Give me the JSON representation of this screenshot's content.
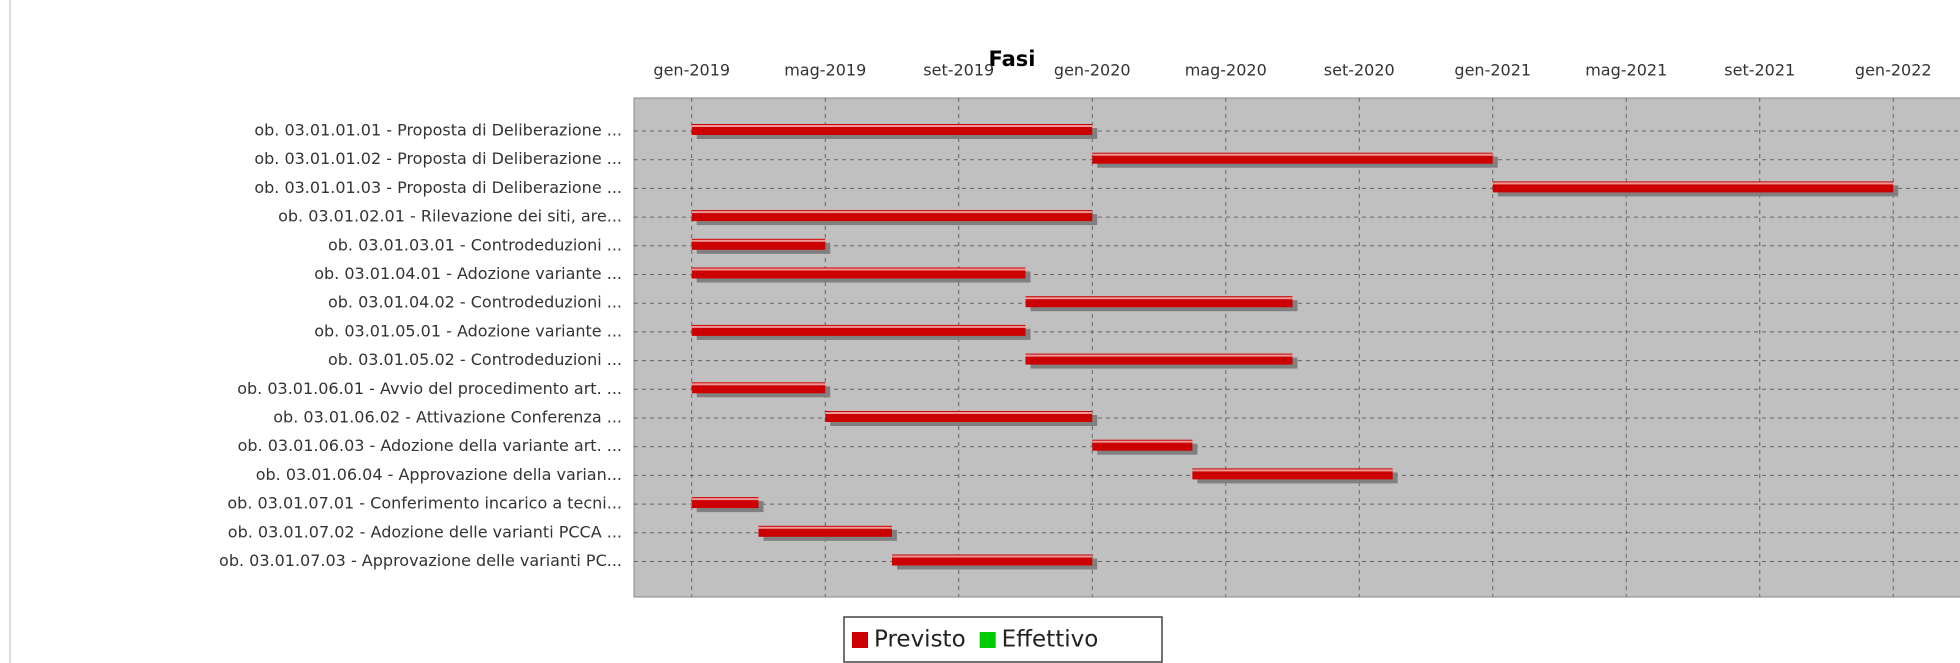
{
  "chart_data": {
    "type": "gantt",
    "title": "Fasi",
    "categories": [
      "ob. 03.01.01.01 - Proposta di Deliberazione ...",
      "ob. 03.01.01.02 - Proposta di Deliberazione ...",
      "ob. 03.01.01.03 - Proposta di Deliberazione ...",
      "ob. 03.01.02.01 - Rilevazione dei siti, are...",
      "ob. 03.01.03.01 - Controdeduzioni ...",
      "ob. 03.01.04.01 - Adozione variante ...",
      "ob. 03.01.04.02 - Controdeduzioni ...",
      "ob. 03.01.05.01 - Adozione variante ...",
      "ob. 03.01.05.02 - Controdeduzioni ...",
      "ob. 03.01.06.01 - Avvio del procedimento art. ...",
      "ob. 03.01.06.02 - Attivazione  Conferenza  ...",
      "ob. 03.01.06.03 - Adozione della variante art. ...",
      "ob. 03.01.06.04 - Approvazione della varian...",
      "ob. 03.01.07.01 - Conferimento incarico a tecni...",
      "ob. 03.01.07.02 - Adozione delle varianti PCCA ...",
      "ob. 03.01.07.03 - Approvazione delle varianti PC..."
    ],
    "series": [
      {
        "name": "Previsto",
        "color": "#cc0000",
        "starts": [
          "2019-01",
          "2020-01",
          "2021-01",
          "2019-01",
          "2019-01",
          "2019-01",
          "2019-11",
          "2019-01",
          "2019-11",
          "2019-01",
          "2019-05",
          "2020-01",
          "2020-04",
          "2019-01",
          "2019-03",
          "2019-07"
        ],
        "ends": [
          "2020-01",
          "2021-01",
          "2022-01",
          "2020-01",
          "2019-05",
          "2019-11",
          "2020-07",
          "2019-11",
          "2020-07",
          "2019-05",
          "2020-01",
          "2020-04",
          "2020-10",
          "2019-03",
          "2019-07",
          "2020-01"
        ]
      },
      {
        "name": "Effettivo",
        "color": "#00cc00"
      }
    ],
    "xlim": [
      "2018-11",
      "2022-03"
    ],
    "xticks": [
      {
        "value": "2019-01",
        "label": "gen-2019"
      },
      {
        "value": "2019-05",
        "label": "mag-2019"
      },
      {
        "value": "2019-09",
        "label": "set-2019"
      },
      {
        "value": "2020-01",
        "label": "gen-2020"
      },
      {
        "value": "2020-05",
        "label": "mag-2020"
      },
      {
        "value": "2020-09",
        "label": "set-2020"
      },
      {
        "value": "2021-01",
        "label": "gen-2021"
      },
      {
        "value": "2021-05",
        "label": "mag-2021"
      },
      {
        "value": "2021-09",
        "label": "set-2021"
      },
      {
        "value": "2022-01",
        "label": "gen-2022"
      }
    ],
    "grid": true,
    "legend": "bottom"
  }
}
